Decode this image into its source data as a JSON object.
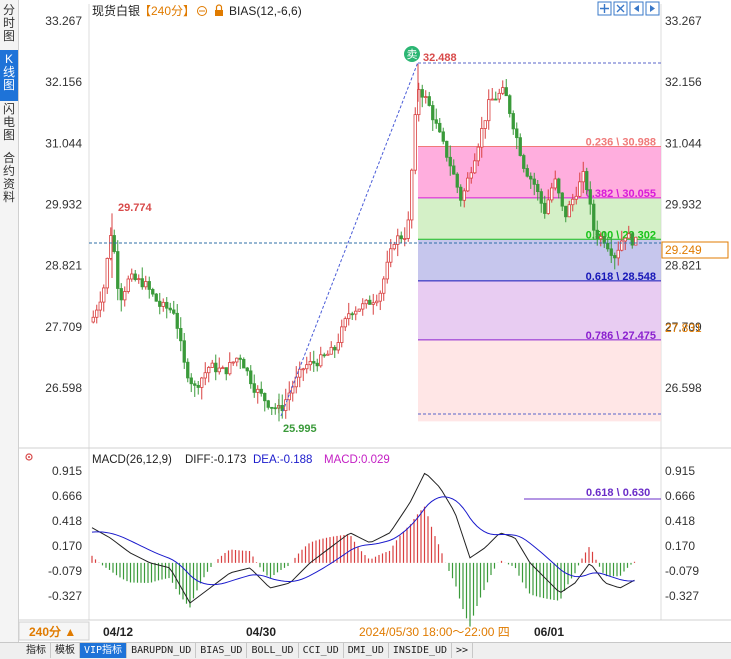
{
  "sidebar": {
    "tabs": [
      {
        "label": "分时图",
        "active": false
      },
      {
        "label": "K线图",
        "active": true
      },
      {
        "label": "闪电图",
        "active": false
      },
      {
        "label": "合约资料",
        "active": false
      }
    ]
  },
  "header": {
    "symbol": "现货白银",
    "period": "【240分】",
    "indicator": "BIAS(12,-6,6)"
  },
  "macd_header": {
    "label": "MACD(26,12,9)",
    "diff": "DIFF:-0.173",
    "dea": "DEA:-0.188",
    "macd": "MACD:0.029"
  },
  "price_axis": {
    "ticks": [
      "33.267",
      "32.156",
      "31.044",
      "29.932",
      "28.821",
      "27.709",
      "26.598"
    ],
    "last_price": "29.249",
    "right_extra": "27.831"
  },
  "macd_axis": {
    "ticks": [
      "0.915",
      "0.666",
      "0.418",
      "0.170",
      "-0.079",
      "-0.327"
    ]
  },
  "annotations": {
    "high": "32.488",
    "local_high": "29.774",
    "low": "25.995",
    "sell_badge": "卖",
    "macd_fib_label": "0.618 \\ 0.630"
  },
  "fib_levels": [
    {
      "label": "0.236 \\ 30.988",
      "ratio": 0.236,
      "price": 30.988,
      "color": "#f07a7a"
    },
    {
      "label": "0.382 \\ 30.055",
      "ratio": 0.382,
      "price": 30.055,
      "color": "#d81bd8"
    },
    {
      "label": "0.500 \\ 29.302",
      "ratio": 0.5,
      "price": 29.302,
      "color": "#19c419"
    },
    {
      "label": "0.618 \\ 28.548",
      "ratio": 0.618,
      "price": 28.548,
      "color": "#1717b8"
    },
    {
      "label": "0.786 \\ 27.475",
      "ratio": 0.786,
      "price": 27.475,
      "color": "#8a1fcf"
    }
  ],
  "time_axis": {
    "period_button": "240分 ▲",
    "labels": [
      "04/12",
      "04/30",
      "2024/05/30 18:00～22:00 四",
      "06/01"
    ]
  },
  "bottom_tabs": [
    {
      "label": "指标",
      "active": false
    },
    {
      "label": "模板",
      "active": false
    },
    {
      "label": "VIP指标",
      "active": true
    },
    {
      "label": "BARUPDN_UD",
      "active": false
    },
    {
      "label": "BIAS_UD",
      "active": false
    },
    {
      "label": "BOLL_UD",
      "active": false
    },
    {
      "label": "CCI_UD",
      "active": false
    },
    {
      "label": "DMI_UD",
      "active": false
    },
    {
      "label": "INSIDE_UD",
      "active": false
    },
    {
      "label": ">>",
      "active": false
    }
  ],
  "chart_data": {
    "type": "candlestick",
    "ylim": [
      25.5,
      33.6
    ],
    "key_points": {
      "start": 27.8,
      "local_high": 29.774,
      "low": 25.995,
      "high": 32.488,
      "last": 29.249
    },
    "macd_ylim": [
      -0.8,
      1.05
    ]
  }
}
